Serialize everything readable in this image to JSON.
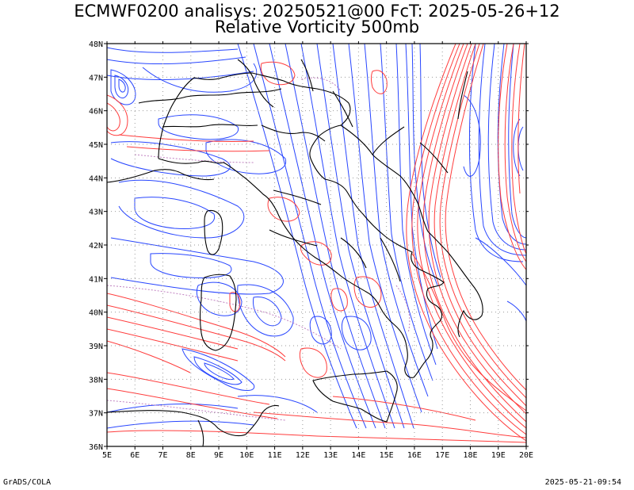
{
  "title_line1": "ECMWF0200 analisys: 20250521@00 FcT: 2025-05-26+12",
  "title_line2": "Relative Vorticity 500mb",
  "footer_left": "GrADS/COLA",
  "footer_right": "2025-05-21-09:54",
  "map": {
    "lon_labels": [
      "5E",
      "6E",
      "7E",
      "8E",
      "9E",
      "10E",
      "11E",
      "12E",
      "13E",
      "14E",
      "15E",
      "16E",
      "17E",
      "18E",
      "19E",
      "20E"
    ],
    "lat_labels": [
      "48N",
      "47N",
      "46N",
      "45N",
      "44N",
      "43N",
      "42N",
      "41N",
      "40N",
      "39N",
      "38N",
      "37N",
      "36N"
    ],
    "colors": {
      "positive_contour": "#ff3c3c",
      "negative_contour": "#2846ff",
      "zero_contour": "#c080c0",
      "coastline": "#000000",
      "grid": "#9a9a9a"
    },
    "grid": "dotted"
  }
}
